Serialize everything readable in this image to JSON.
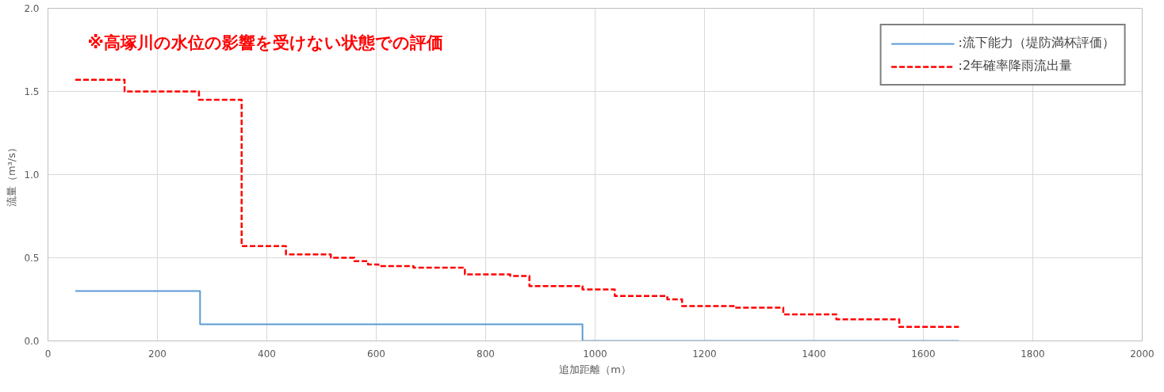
{
  "chart_data": {
    "type": "step",
    "xlabel": "追加距離（m）",
    "ylabel": "流量（m³/s）",
    "annotations": [
      "※高塚川の水位の影響を受けない状態での評価"
    ],
    "xlim": [
      0,
      2000
    ],
    "xticks": [
      0,
      200,
      400,
      600,
      800,
      1000,
      1200,
      1400,
      1600,
      1800,
      2000
    ],
    "ylim": [
      0,
      2.0
    ],
    "yticks": [
      {
        "value": 0,
        "label": "0.0"
      },
      {
        "value": 0.5,
        "label": "0.5"
      },
      {
        "value": 1.0,
        "label": "1.0"
      },
      {
        "value": 1.5,
        "label": "1.5"
      },
      {
        "value": 2.0,
        "label": "2.0"
      }
    ],
    "grid": true,
    "legend": "top right",
    "series": [
      {
        "name": ":流下能力（堤防満杯評価）",
        "color": "#5b9bd5",
        "line_style": "solid",
        "x": [
          50,
          278,
          977,
          1665
        ],
        "values": [
          0.3,
          0.1,
          0.0,
          0.0
        ]
      },
      {
        "name": ":2年確率降雨流出量",
        "color": "#ff0000",
        "line_style": "dashed",
        "x": [
          50,
          140,
          276,
          354,
          435,
          517,
          560,
          585,
          604,
          668,
          762,
          845,
          880,
          977,
          1036,
          1132,
          1159,
          1255,
          1344,
          1441,
          1556,
          1665
        ],
        "values": [
          1.57,
          1.5,
          1.45,
          0.57,
          0.52,
          0.5,
          0.48,
          0.46,
          0.45,
          0.44,
          0.4,
          0.39,
          0.33,
          0.31,
          0.27,
          0.25,
          0.21,
          0.2,
          0.16,
          0.13,
          0.085,
          0.085
        ]
      }
    ]
  }
}
